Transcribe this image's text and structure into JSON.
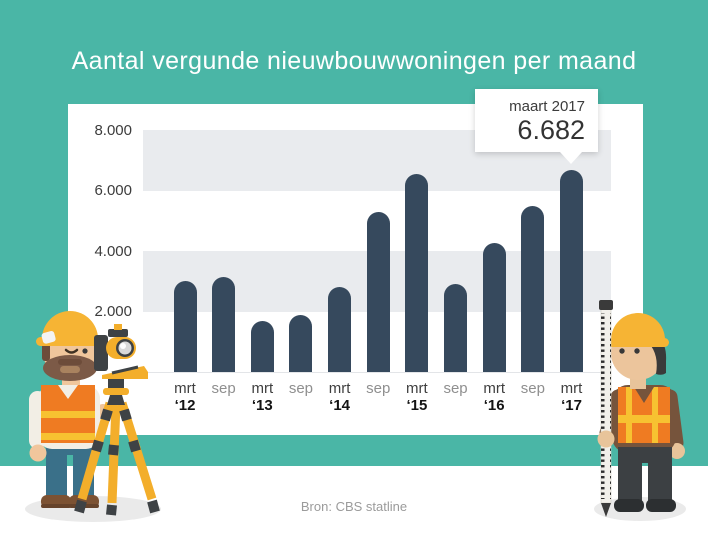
{
  "page": {
    "title": "Aantal vergunde nieuwbouwwoningen per maand",
    "source": "Bron: CBS statline",
    "background_color": "#4ab6a6"
  },
  "callout": {
    "label": "maart 2017",
    "value": "6.682"
  },
  "chart_data": {
    "type": "bar",
    "title": "Aantal vergunde nieuwbouwwoningen per maand",
    "categories": [
      "mrt '12",
      "sep '12",
      "mrt '13",
      "sep '13",
      "mrt '14",
      "sep '14",
      "mrt '15",
      "sep '15",
      "mrt '16",
      "sep '16",
      "mrt '17"
    ],
    "values": [
      3000,
      3150,
      1700,
      1900,
      2800,
      5300,
      6550,
      2900,
      4250,
      5500,
      6682
    ],
    "x_ticks": [
      {
        "month": "mrt",
        "year": "‘12",
        "major": true
      },
      {
        "month": "sep",
        "year": "",
        "major": false
      },
      {
        "month": "mrt",
        "year": "‘13",
        "major": true
      },
      {
        "month": "sep",
        "year": "",
        "major": false
      },
      {
        "month": "mrt",
        "year": "‘14",
        "major": true
      },
      {
        "month": "sep",
        "year": "",
        "major": false
      },
      {
        "month": "mrt",
        "year": "‘15",
        "major": true
      },
      {
        "month": "sep",
        "year": "",
        "major": false
      },
      {
        "month": "mrt",
        "year": "‘16",
        "major": true
      },
      {
        "month": "sep",
        "year": "",
        "major": false
      },
      {
        "month": "mrt",
        "year": "‘17",
        "major": true
      }
    ],
    "y_ticks": [
      {
        "label": "8.000",
        "value": 8000
      },
      {
        "label": "6.000",
        "value": 6000
      },
      {
        "label": "4.000",
        "value": 4000
      },
      {
        "label": "2.000",
        "value": 2000
      }
    ],
    "ylim": [
      0,
      8000
    ],
    "grid_bands": [
      [
        8000,
        6000
      ],
      [
        4000,
        2000
      ]
    ],
    "grid": "banded",
    "legend": "none",
    "annotation": {
      "category": "mrt '17",
      "label": "maart 2017",
      "value": 6682,
      "display": "6.682"
    },
    "bar_color": "#36495d",
    "band_color": "#e9ebee"
  },
  "illustrations": {
    "left": "surveyor-with-theodolite-on-tripod",
    "right": "construction-worker-holding-leveling-rod"
  }
}
